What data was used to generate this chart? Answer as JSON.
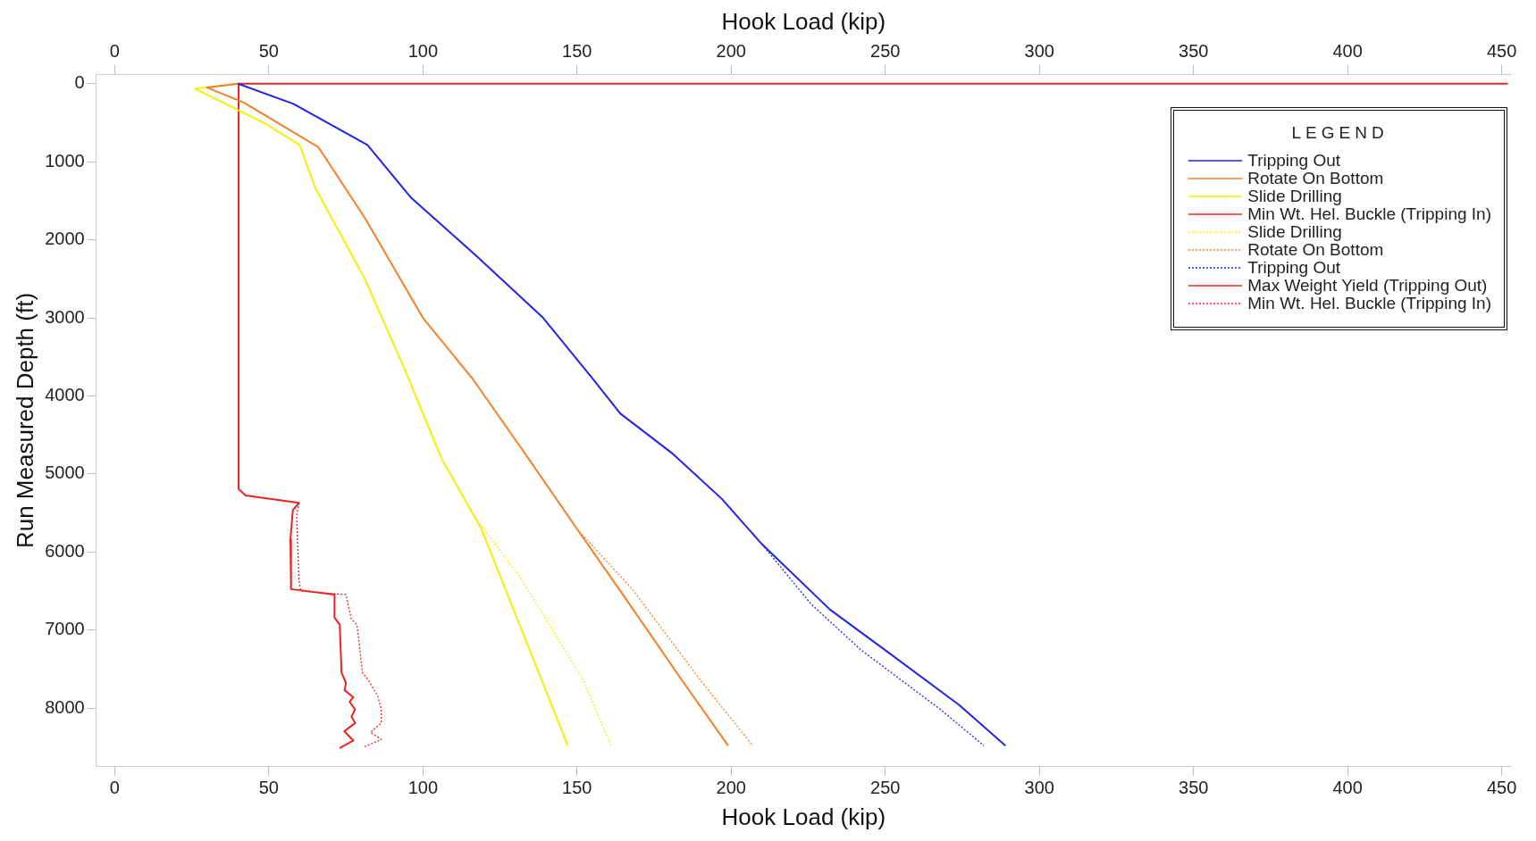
{
  "chart_data": {
    "type": "line",
    "xlabel": "Hook Load (kip)",
    "x2label": "Hook Load (kip)",
    "ylabel": "Run Measured Depth (ft)",
    "legend_title": "LEGEND",
    "legend": "top right",
    "grid": false,
    "xlim": [
      -6,
      453
    ],
    "xticks": [
      0,
      50,
      100,
      150,
      200,
      250,
      300,
      350,
      400,
      450
    ],
    "x2lim": [
      -6,
      453
    ],
    "x2ticks": [
      0,
      50,
      100,
      150,
      200,
      250,
      300,
      350,
      400,
      450
    ],
    "ylim": [
      8750,
      -120
    ],
    "yticks": [
      0,
      1000,
      2000,
      3000,
      4000,
      5000,
      6000,
      7000,
      8000
    ],
    "series": [
      {
        "name": "Tripping Out",
        "color": "#2222ee",
        "line_style": "solid",
        "x": [
          40,
          58,
          82,
          96,
          118,
          139,
          155,
          164,
          181,
          197,
          210,
          232,
          252,
          274,
          289
        ],
        "values": [
          0,
          260,
          785,
          1455,
          2230,
          3000,
          3775,
          4225,
          4740,
          5320,
          5900,
          6735,
          7315,
          7960,
          8480
        ]
      },
      {
        "name": "Rotate On Bottom",
        "color": "#f57f28",
        "line_style": "solid",
        "x": [
          40,
          30,
          42,
          66,
          81,
          100,
          116,
          132,
          150,
          166,
          184,
          199
        ],
        "values": [
          0,
          50,
          245,
          810,
          1710,
          3000,
          3775,
          4675,
          5705,
          6610,
          7640,
          8480
        ]
      },
      {
        "name": "Slide Drilling",
        "color": "#f5f000",
        "line_style": "solid",
        "x": [
          40,
          26,
          49,
          60,
          65,
          81,
          94,
          106,
          119,
          132,
          147
        ],
        "values": [
          0,
          65,
          515,
          785,
          1330,
          2490,
          3650,
          4800,
          5705,
          6995,
          8480
        ]
      },
      {
        "name": "Min Wt. Hel. Buckle (Tripping In)",
        "color": "#ee2222",
        "line_style": "solid",
        "x": [
          40.2,
          40.2,
          42.5,
          59.8,
          57.8,
          57,
          57.2,
          71.3,
          71.3,
          73,
          73.6,
          75,
          74.6,
          77.4,
          76.2,
          78,
          76.8,
          78,
          74.5,
          77.4,
          73
        ],
        "values": [
          0,
          5193,
          5275,
          5370,
          5464,
          5840,
          6475,
          6545,
          6840,
          6930,
          7545,
          7675,
          7770,
          7860,
          7920,
          8015,
          8110,
          8190,
          8295,
          8415,
          8510
        ]
      },
      {
        "name": "Slide Drilling",
        "color": "#f5f000",
        "line_style": "dotted",
        "x": [
          115,
          132,
          152,
          161
        ],
        "values": [
          5450,
          6350,
          7640,
          8480
        ]
      },
      {
        "name": "Rotate On Bottom",
        "color": "#f57f28",
        "line_style": "dotted",
        "x": [
          150,
          168,
          190,
          207
        ],
        "values": [
          5705,
          6480,
          7640,
          8480
        ]
      },
      {
        "name": "Tripping Out",
        "color": "#2222ee",
        "line_style": "dotted",
        "x": [
          210,
          226,
          242,
          268,
          282
        ],
        "values": [
          5900,
          6670,
          7250,
          8020,
          8480
        ]
      },
      {
        "name": "Max Weight Yield (Tripping Out)",
        "color": "#ee2222",
        "line_style": "solid",
        "x": [
          40,
          452
        ],
        "values": [
          0,
          0
        ]
      },
      {
        "name": "Min Wt. Hel. Buckle (Tripping In)",
        "color": "#ee2222",
        "line_style": "dotted",
        "x": [
          59.8,
          59,
          59.8,
          60.4,
          75,
          76.8,
          78.6,
          80.4,
          82.4,
          85.3,
          86.5,
          86.5,
          83,
          86.5,
          81
        ],
        "values": [
          5370,
          5545,
          6370,
          6500,
          6545,
          6860,
          6930,
          7545,
          7650,
          7840,
          8015,
          8190,
          8310,
          8400,
          8495
        ]
      }
    ]
  }
}
